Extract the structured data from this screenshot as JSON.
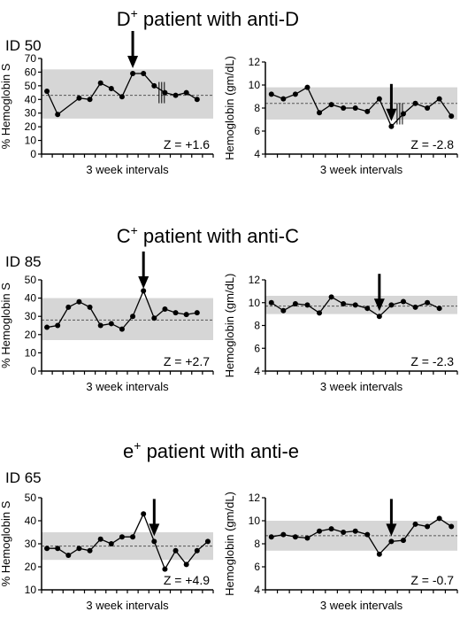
{
  "colors": {
    "band": "#d6d6d6",
    "line": "#000000",
    "refline": "#555555",
    "background": "#ffffff"
  },
  "panels": [
    {
      "title": "D",
      "title_sup": "+",
      "title_rest": " patient with anti-D",
      "id_label": "ID 50"
    },
    {
      "title": "C",
      "title_sup": "+",
      "title_rest": " patient with anti-C",
      "id_label": "ID 85"
    },
    {
      "title": "e",
      "title_sup": "+",
      "title_rest": " patient with anti-e",
      "id_label": "ID 65"
    }
  ],
  "chart_data": [
    {
      "type": "line",
      "panel": 0,
      "side": "left",
      "ylabel": "% Hemoglobin S",
      "xlabel": "3 week intervals",
      "ylim": [
        0,
        70
      ],
      "yticks": [
        0,
        10,
        20,
        30,
        40,
        50,
        60,
        70
      ],
      "band": [
        26,
        62
      ],
      "reference": 43,
      "arrow_at": 9,
      "transfusion_marks": [
        12
      ],
      "x": [
        1,
        2,
        4,
        5,
        6,
        7,
        8,
        9,
        10,
        11,
        12,
        13,
        14,
        15
      ],
      "values": [
        46,
        29,
        41,
        40,
        52,
        48,
        42,
        59,
        59,
        50,
        45,
        43,
        45,
        40
      ],
      "annotation": "Z = +1.6"
    },
    {
      "type": "line",
      "panel": 0,
      "side": "right",
      "ylabel": "Hemoglobin (gm/dL)",
      "xlabel": "3 week intervals",
      "ylim": [
        4,
        12
      ],
      "yticks": [
        4,
        6,
        8,
        10,
        12
      ],
      "band": [
        7,
        9.8
      ],
      "reference": 8.4,
      "arrow_at": 11,
      "transfusion_marks": [
        12
      ],
      "x": [
        1,
        2,
        3,
        4,
        5,
        6,
        7,
        8,
        9,
        10,
        11,
        12,
        13,
        14,
        15,
        16
      ],
      "values": [
        9.2,
        8.8,
        9.2,
        9.8,
        7.6,
        8.3,
        8.0,
        8.0,
        7.7,
        8.8,
        6.4,
        7.5,
        8.4,
        8.0,
        8.8,
        7.3
      ],
      "annotation": "Z = -2.8"
    },
    {
      "type": "line",
      "panel": 1,
      "side": "left",
      "ylabel": "% Hemoglobin S",
      "xlabel": "3 week intervals",
      "ylim": [
        0,
        50
      ],
      "yticks": [
        0,
        10,
        20,
        30,
        40,
        50
      ],
      "band": [
        17,
        40
      ],
      "reference": 28,
      "arrow_at": 10,
      "transfusion_marks": [],
      "x": [
        1,
        2,
        3,
        4,
        5,
        6,
        7,
        8,
        9,
        10,
        11,
        12,
        13,
        14,
        15
      ],
      "values": [
        24,
        25,
        35,
        38,
        35,
        25,
        26,
        23,
        30,
        44,
        29,
        34,
        32,
        31,
        32
      ],
      "annotation": "Z = +2.7"
    },
    {
      "type": "line",
      "panel": 1,
      "side": "right",
      "ylabel": "Hemoglobin (gm/dL)",
      "xlabel": "3 week intervals",
      "ylim": [
        4,
        12
      ],
      "yticks": [
        4,
        6,
        8,
        10,
        12
      ],
      "band": [
        9,
        10.6
      ],
      "reference": 9.7,
      "arrow_at": 10,
      "transfusion_marks": [],
      "x": [
        1,
        2,
        3,
        4,
        5,
        6,
        7,
        8,
        9,
        10,
        11,
        12,
        13,
        14,
        15
      ],
      "values": [
        10.0,
        9.3,
        9.9,
        9.8,
        9.1,
        10.5,
        9.9,
        9.8,
        9.5,
        8.8,
        9.8,
        10.1,
        9.6,
        10.0,
        9.5
      ],
      "annotation": "Z = -2.3"
    },
    {
      "type": "line",
      "panel": 2,
      "side": "left",
      "ylabel": "% Hemoglobin S",
      "xlabel": "3 week intervals",
      "ylim": [
        10,
        50
      ],
      "yticks": [
        10,
        20,
        30,
        40,
        50
      ],
      "band": [
        23,
        35
      ],
      "reference": 29,
      "arrow_at": 11,
      "transfusion_marks": [],
      "x": [
        1,
        2,
        3,
        4,
        5,
        6,
        7,
        8,
        9,
        10,
        11,
        12,
        13,
        14,
        15,
        16
      ],
      "values": [
        28,
        28,
        25,
        28,
        27,
        32,
        30,
        33,
        33,
        43,
        31,
        19,
        27,
        21,
        27,
        31
      ],
      "annotation": "Z = +4.9"
    },
    {
      "type": "line",
      "panel": 2,
      "side": "right",
      "ylabel": "Hemoglobin (gm/dL)",
      "xlabel": "3 week intervals",
      "ylim": [
        4,
        12
      ],
      "yticks": [
        4,
        6,
        8,
        10,
        12
      ],
      "band": [
        7.4,
        10
      ],
      "reference": 8.7,
      "arrow_at": 11,
      "transfusion_marks": [],
      "x": [
        1,
        2,
        3,
        4,
        5,
        6,
        7,
        8,
        9,
        10,
        11,
        12,
        13,
        14,
        15,
        16
      ],
      "values": [
        8.6,
        8.8,
        8.6,
        8.5,
        9.1,
        9.3,
        9.0,
        9.1,
        8.8,
        7.1,
        8.2,
        8.3,
        9.7,
        9.5,
        10.2,
        9.5
      ],
      "annotation": "Z = -0.7"
    }
  ]
}
